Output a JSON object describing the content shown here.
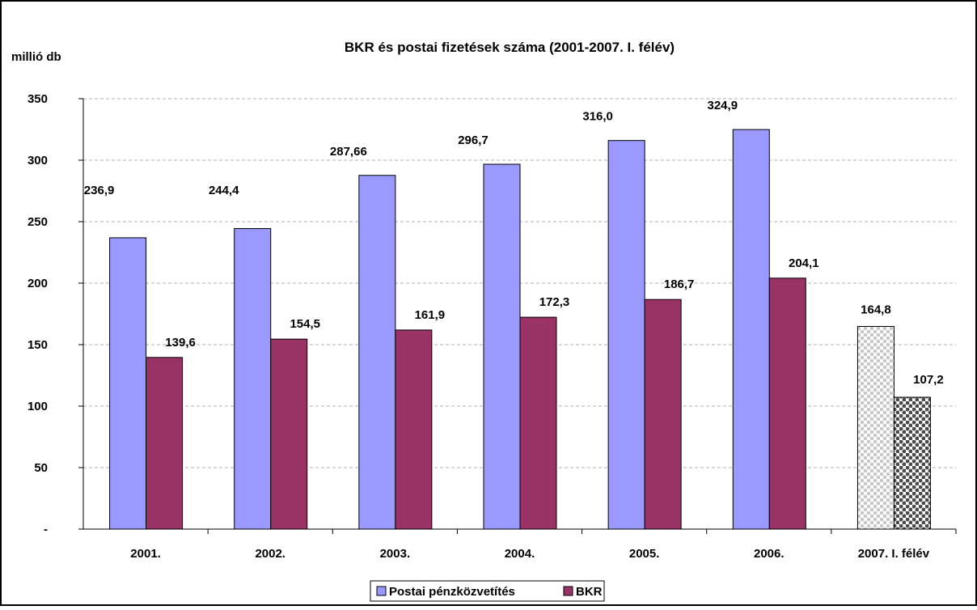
{
  "chart_data": {
    "type": "bar",
    "title": "BKR és postai fizetések száma (2001-2007. I. félév)",
    "ylabel": "millió db",
    "xlabel": "",
    "ylim": [
      0,
      350
    ],
    "ytick_step": 50,
    "yticks": [
      "-",
      "50",
      "100",
      "150",
      "200",
      "250",
      "300",
      "350"
    ],
    "grid": true,
    "legend_position": "bottom-center",
    "categories": [
      "2001.",
      "2002.",
      "2003.",
      "2004.",
      "2005.",
      "2006.",
      "2007. I. félév"
    ],
    "series": [
      {
        "name": "Postai pénzközvetítés",
        "color": "#9999ff",
        "values": [
          236.9,
          244.4,
          287.66,
          296.7,
          316.0,
          324.9,
          164.8
        ],
        "labels": [
          "236,9",
          "244,4",
          "287,66",
          "296,7",
          "316,0",
          "324,9",
          "164,8"
        ]
      },
      {
        "name": "BKR",
        "color": "#993366",
        "values": [
          139.6,
          154.5,
          161.9,
          172.3,
          186.7,
          204.1,
          107.2
        ],
        "labels": [
          "139,6",
          "154,5",
          "161,9",
          "172,3",
          "186,7",
          "204,1",
          "107,2"
        ]
      }
    ],
    "patterned_category": "2007. I. félév"
  }
}
